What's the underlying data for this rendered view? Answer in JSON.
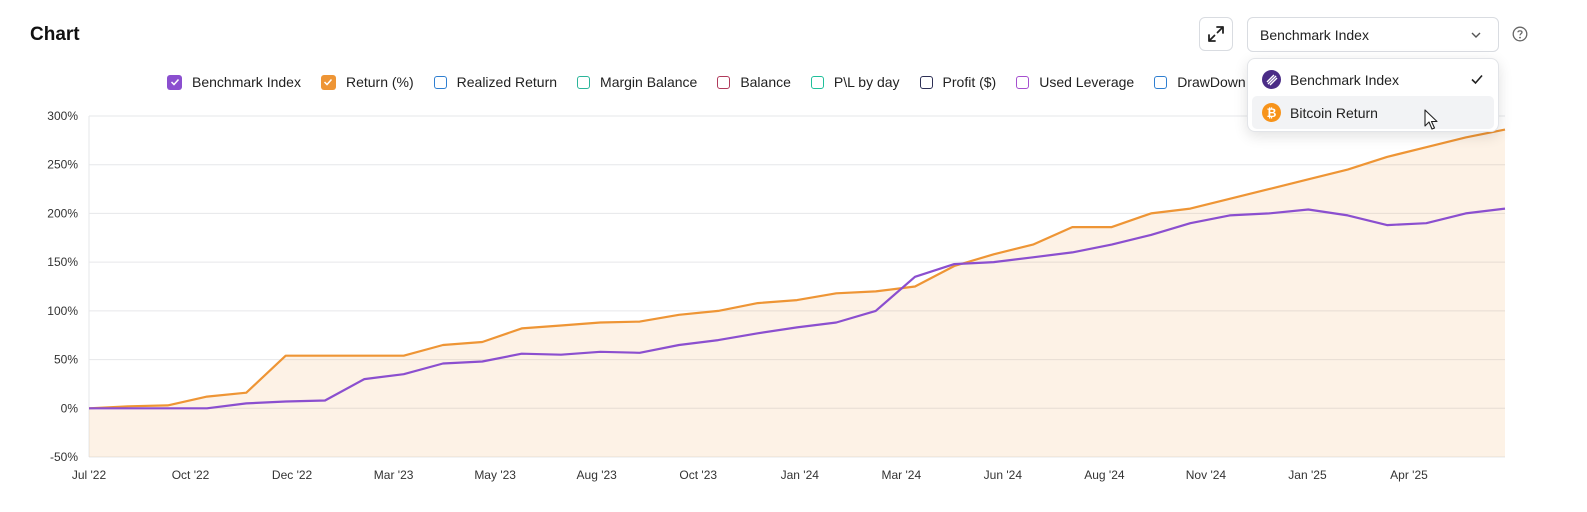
{
  "header": {
    "title": "Chart",
    "selected": "Benchmark Index"
  },
  "legend": [
    {
      "label": "Benchmark Index",
      "color": "#8b4fcf",
      "checked": true
    },
    {
      "label": "Return (%)",
      "color": "#ee9535",
      "checked": true
    },
    {
      "label": "Realized Return",
      "color": "#2f7fd1",
      "checked": false
    },
    {
      "label": "Margin Balance",
      "color": "#2bb59a",
      "checked": false
    },
    {
      "label": "Balance",
      "color": "#b03a5b",
      "checked": false
    },
    {
      "label": "P\\L by day",
      "color": "#1fbf9a",
      "checked": false
    },
    {
      "label": "Profit ($)",
      "color": "#2d2f55",
      "checked": false
    },
    {
      "label": "Used Leverage",
      "color": "#a64fcf",
      "checked": false
    },
    {
      "label": "DrawDown",
      "color": "#2f7fd1",
      "checked": false
    }
  ],
  "dropdown": {
    "items": [
      {
        "label": "Benchmark Index",
        "icon": "benchmark-icon",
        "selected": true
      },
      {
        "label": "Bitcoin Return",
        "icon": "bitcoin-icon",
        "selected": false
      }
    ]
  },
  "chart_data": {
    "type": "line",
    "title": "",
    "xlabel": "",
    "ylabel": "",
    "ylim": [
      -50,
      300
    ],
    "yticks": [
      -50,
      0,
      50,
      100,
      150,
      200,
      250,
      300
    ],
    "ytick_labels": [
      "-50%",
      "0%",
      "50%",
      "100%",
      "150%",
      "200%",
      "250%",
      "300%"
    ],
    "xticks": [
      "Jul '22",
      "Oct '22",
      "Dec '22",
      "Mar '23",
      "May '23",
      "Aug '23",
      "Oct '23",
      "Jan '24",
      "Mar '24",
      "Jun '24",
      "Aug '24",
      "Nov '24",
      "Jan '25",
      "Apr '25"
    ],
    "grid": true,
    "x": [
      "2022-07",
      "2022-08",
      "2022-09",
      "2022-10",
      "2022-11",
      "2022-12",
      "2023-01",
      "2023-02",
      "2023-03",
      "2023-04",
      "2023-05",
      "2023-06",
      "2023-07",
      "2023-08",
      "2023-09",
      "2023-10",
      "2023-11",
      "2023-12",
      "2024-01",
      "2024-02",
      "2024-03",
      "2024-04",
      "2024-05",
      "2024-06",
      "2024-07",
      "2024-08",
      "2024-09",
      "2024-10",
      "2024-11",
      "2024-12",
      "2025-01",
      "2025-02",
      "2025-03",
      "2025-04",
      "2025-05",
      "2025-06",
      "2025-07"
    ],
    "series": [
      {
        "name": "Return (%)",
        "color": "#ee9535",
        "fill": true,
        "values": [
          0,
          2,
          3,
          12,
          16,
          54,
          54,
          54,
          54,
          65,
          68,
          82,
          85,
          88,
          89,
          96,
          100,
          108,
          111,
          118,
          120,
          125,
          146,
          158,
          168,
          186,
          186,
          200,
          205,
          215,
          225,
          235,
          245,
          258,
          268,
          278,
          286
        ]
      },
      {
        "name": "Benchmark Index",
        "color": "#8b4fcf",
        "fill": false,
        "values": [
          0,
          0,
          0,
          0,
          5,
          7,
          8,
          30,
          35,
          46,
          48,
          56,
          55,
          58,
          57,
          65,
          70,
          77,
          83,
          88,
          100,
          135,
          148,
          150,
          155,
          160,
          168,
          178,
          190,
          198,
          200,
          204,
          198,
          188,
          190,
          200,
          205
        ]
      }
    ]
  }
}
